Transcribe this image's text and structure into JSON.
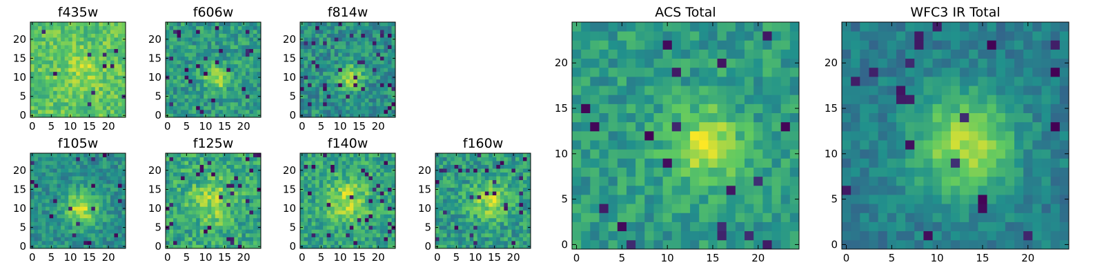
{
  "colormap": [
    "#440154",
    "#3b528b",
    "#21918c",
    "#5ec962",
    "#fde725"
  ],
  "chart_data": [
    {
      "id": "f435w",
      "type": "heatmap",
      "title": "f435w",
      "nx": 25,
      "ny": 25,
      "xlim": [
        0,
        24
      ],
      "ylim": [
        0,
        24
      ],
      "xticks": [
        0,
        5,
        10,
        15,
        20
      ],
      "yticks": [
        0,
        5,
        10,
        15,
        20
      ],
      "seed": 435,
      "blob": {
        "x": 14,
        "y": 12,
        "amp": 0.12,
        "sigma": 4
      },
      "base": 0.72,
      "noise": 0.14,
      "dark_frac": 0.02
    },
    {
      "id": "f606w",
      "type": "heatmap",
      "title": "f606w",
      "nx": 25,
      "ny": 25,
      "xlim": [
        0,
        24
      ],
      "ylim": [
        0,
        24
      ],
      "xticks": [
        0,
        5,
        10,
        15,
        20
      ],
      "yticks": [
        0,
        5,
        10,
        15,
        20
      ],
      "seed": 606,
      "blob": {
        "x": 13,
        "y": 10,
        "amp": 0.35,
        "sigma": 2.2
      },
      "base": 0.55,
      "noise": 0.16,
      "dark_frac": 0.04
    },
    {
      "id": "f814w",
      "type": "heatmap",
      "title": "f814w",
      "nx": 25,
      "ny": 25,
      "xlim": [
        0,
        24
      ],
      "ylim": [
        0,
        24
      ],
      "xticks": [
        0,
        5,
        10,
        15,
        20
      ],
      "yticks": [
        0,
        5,
        10,
        15,
        20
      ],
      "seed": 814,
      "blob": {
        "x": 13,
        "y": 10,
        "amp": 0.4,
        "sigma": 2.2
      },
      "base": 0.5,
      "noise": 0.16,
      "dark_frac": 0.04
    },
    {
      "id": "f105w",
      "type": "heatmap",
      "title": "f105w",
      "nx": 25,
      "ny": 25,
      "xlim": [
        0,
        24
      ],
      "ylim": [
        0,
        24
      ],
      "xticks": [
        0,
        5,
        10,
        15,
        20
      ],
      "yticks": [
        0,
        5,
        10,
        15,
        20
      ],
      "seed": 105,
      "blob": {
        "x": 13,
        "y": 10,
        "amp": 0.4,
        "sigma": 3.2
      },
      "base": 0.5,
      "noise": 0.13,
      "dark_frac": 0.02
    },
    {
      "id": "f125w",
      "type": "heatmap",
      "title": "f125w",
      "nx": 25,
      "ny": 25,
      "xlim": [
        0,
        24
      ],
      "ylim": [
        0,
        24
      ],
      "xticks": [
        0,
        5,
        10,
        15,
        20
      ],
      "yticks": [
        0,
        5,
        10,
        15,
        20
      ],
      "seed": 125,
      "blob": {
        "x": 12,
        "y": 12,
        "amp": 0.25,
        "sigma": 4
      },
      "base": 0.6,
      "noise": 0.17,
      "dark_frac": 0.05
    },
    {
      "id": "f140w",
      "type": "heatmap",
      "title": "f140w",
      "nx": 25,
      "ny": 25,
      "xlim": [
        0,
        24
      ],
      "ylim": [
        0,
        24
      ],
      "xticks": [
        0,
        5,
        10,
        15,
        20
      ],
      "yticks": [
        0,
        5,
        10,
        15,
        20
      ],
      "seed": 140,
      "blob": {
        "x": 12,
        "y": 12,
        "amp": 0.3,
        "sigma": 4
      },
      "base": 0.58,
      "noise": 0.16,
      "dark_frac": 0.05
    },
    {
      "id": "f160w",
      "type": "heatmap",
      "title": "f160w",
      "nx": 25,
      "ny": 25,
      "xlim": [
        0,
        24
      ],
      "ylim": [
        0,
        24
      ],
      "xticks": [
        0,
        5,
        10,
        15,
        20
      ],
      "yticks": [
        0,
        5,
        10,
        15,
        20
      ],
      "seed": 160,
      "blob": {
        "x": 14,
        "y": 12,
        "amp": 0.3,
        "sigma": 3.5
      },
      "base": 0.55,
      "noise": 0.16,
      "dark_frac": 0.05
    },
    {
      "id": "acs-total",
      "type": "heatmap",
      "title": "ACS Total",
      "nx": 25,
      "ny": 25,
      "xlim": [
        0,
        24
      ],
      "ylim": [
        0,
        24
      ],
      "xticks": [
        0,
        5,
        10,
        15,
        20
      ],
      "yticks": [
        0,
        5,
        10,
        15,
        20
      ],
      "seed": 999,
      "blob": {
        "x": 14,
        "y": 11,
        "amp": 0.35,
        "sigma": 3
      },
      "base": 0.55,
      "noise": 0.13,
      "dark_frac": 0.03
    },
    {
      "id": "wfc3-ir-total",
      "type": "heatmap",
      "title": "WFC3 IR Total",
      "nx": 25,
      "ny": 25,
      "xlim": [
        0,
        24
      ],
      "ylim": [
        0,
        24
      ],
      "xticks": [
        0,
        5,
        10,
        15,
        20
      ],
      "yticks": [
        0,
        5,
        10,
        15,
        20
      ],
      "seed": 333,
      "blob": {
        "x": 13,
        "y": 11,
        "amp": 0.45,
        "sigma": 4
      },
      "base": 0.42,
      "noise": 0.1,
      "dark_frac": 0.03
    }
  ]
}
